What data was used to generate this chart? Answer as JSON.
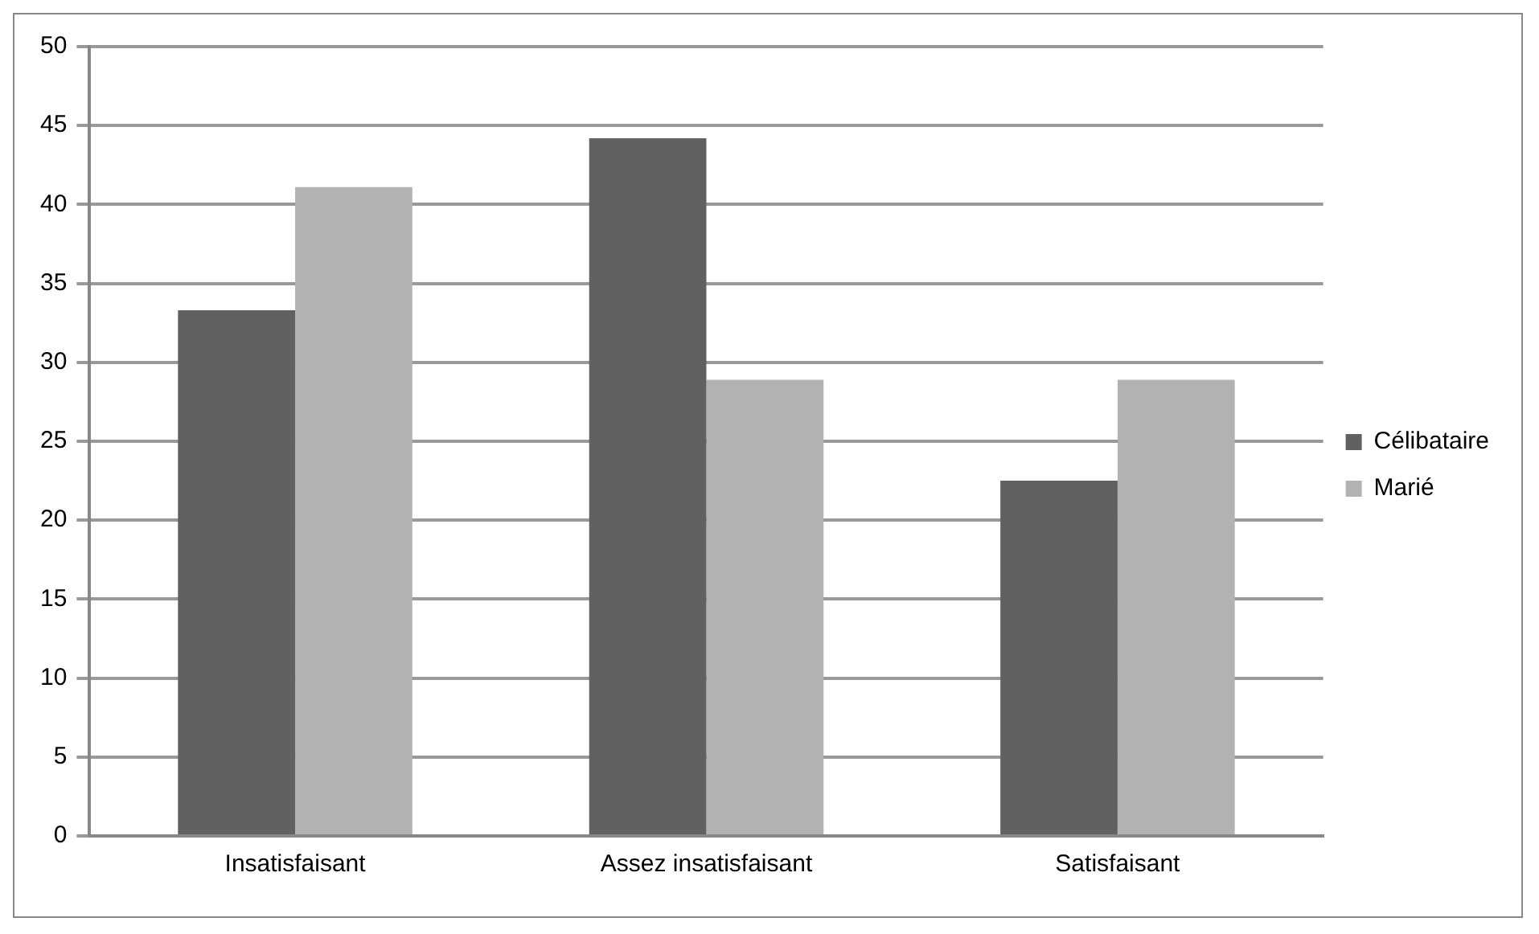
{
  "chart_data": {
    "type": "bar",
    "categories": [
      "Insatisfaisant",
      "Assez insatisfaisant",
      "Satisfaisant"
    ],
    "series": [
      {
        "name": "Célibataire",
        "color": "#616161",
        "values": [
          33.3,
          44.2,
          22.5
        ]
      },
      {
        "name": "Marié",
        "color": "#b2b2b2",
        "values": [
          41.1,
          28.9,
          28.9
        ]
      }
    ],
    "ylim": [
      0,
      50
    ],
    "yticks": [
      0,
      5,
      10,
      15,
      20,
      25,
      30,
      35,
      40,
      45,
      50
    ],
    "grid": "y",
    "legend": "right"
  }
}
